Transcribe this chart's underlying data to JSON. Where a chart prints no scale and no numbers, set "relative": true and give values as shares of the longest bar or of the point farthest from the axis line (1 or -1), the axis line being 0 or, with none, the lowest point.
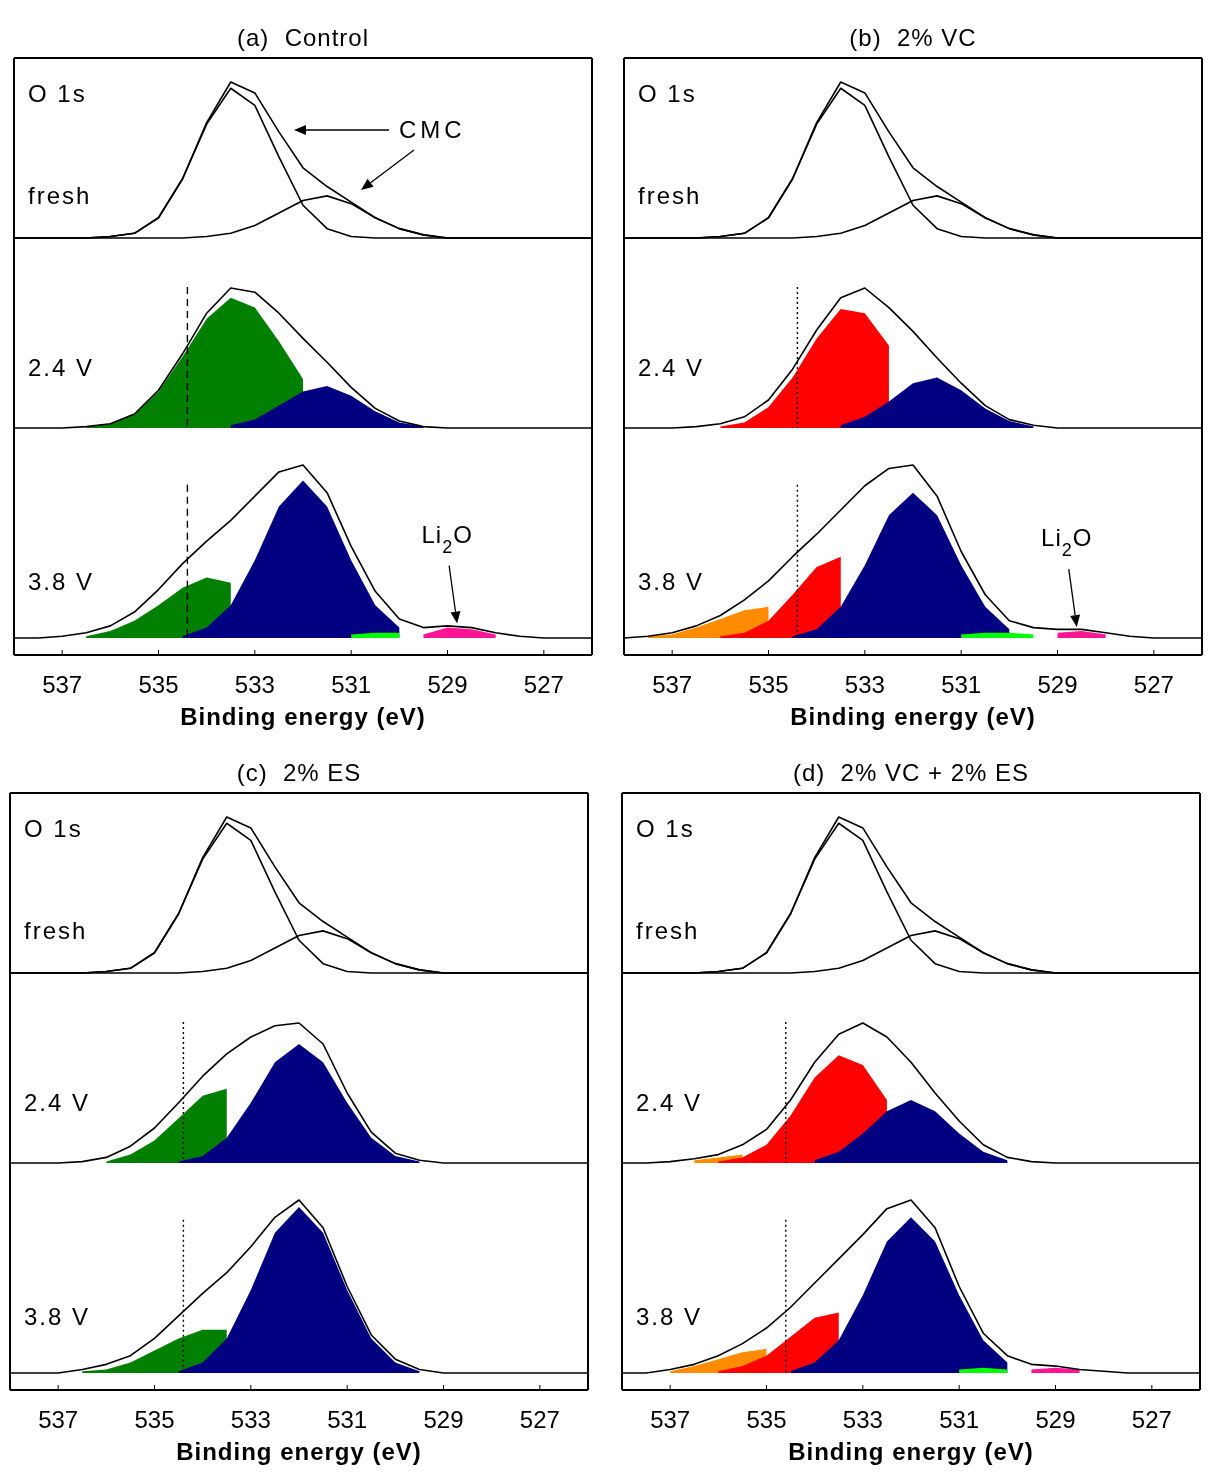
{
  "chart_data": [
    {
      "type": "line",
      "title": "(a)  Control",
      "x": [
        538,
        537.5,
        537,
        536.5,
        536,
        535.5,
        535,
        534.5,
        534,
        533.5,
        533,
        532.5,
        532,
        531.5,
        531,
        530.5,
        530,
        529.5,
        529,
        528.5,
        528,
        527.5,
        527,
        526.5,
        526
      ],
      "xlim": [
        538,
        526
      ],
      "relative": true,
      "tick_labels": false,
      "annotations": [
        "O 1s",
        "fresh",
        "CMC"
      ],
      "series": [
        {
          "color": "#000000",
          "values": [
            0,
            0,
            0,
            0,
            0.01,
            0.03,
            0.13,
            0.38,
            0.73,
            0.96,
            0.85,
            0.52,
            0.21,
            0.06,
            0.01,
            0,
            0,
            0,
            0,
            0,
            0,
            0,
            0,
            0,
            0
          ]
        },
        {
          "color": "#000000",
          "values": [
            0,
            0,
            0,
            0,
            0,
            0,
            0,
            0,
            0.01,
            0.03,
            0.08,
            0.16,
            0.24,
            0.27,
            0.22,
            0.13,
            0.06,
            0.02,
            0,
            0,
            0,
            0,
            0,
            0,
            0
          ]
        },
        {
          "color": "#000000",
          "values": [
            0,
            0,
            0,
            0,
            0.01,
            0.03,
            0.13,
            0.38,
            0.74,
            1.0,
            0.93,
            0.68,
            0.45,
            0.33,
            0.23,
            0.13,
            0.06,
            0.02,
            0,
            0,
            0,
            0,
            0,
            0,
            0
          ]
        }
      ]
    },
    {
      "type": "area",
      "x": [
        538,
        537.5,
        537,
        536.5,
        536,
        535.5,
        535,
        534.5,
        534,
        533.5,
        533,
        532.5,
        532,
        531.5,
        531,
        530.5,
        530,
        529.5,
        529,
        528.5,
        528,
        527.5,
        527,
        526.5,
        526
      ],
      "xlim": [
        538,
        526
      ],
      "relative": true,
      "tick_labels": false,
      "annotations": [
        "2.4 V"
      ],
      "ref_lines": [
        {
          "axis": "x",
          "value": 534.4,
          "line_style": "dashed"
        }
      ],
      "series": [
        {
          "color": "#007f00",
          "x": [
            536.5,
            536,
            535.5,
            535,
            534.5,
            534,
            533.5,
            533,
            532.5,
            532
          ],
          "values": [
            0.01,
            0.03,
            0.1,
            0.26,
            0.51,
            0.78,
            0.93,
            0.86,
            0.62,
            0.35
          ]
        },
        {
          "color": "#000080",
          "x": [
            533.5,
            533,
            532.5,
            532,
            531.5,
            531,
            530.5,
            530,
            529.5
          ],
          "values": [
            0.02,
            0.06,
            0.16,
            0.26,
            0.3,
            0.23,
            0.12,
            0.04,
            0.01
          ]
        },
        {
          "type": "line",
          "color": "#000000",
          "values": [
            0,
            0,
            0,
            0.01,
            0.03,
            0.1,
            0.27,
            0.53,
            0.82,
            1.0,
            0.97,
            0.82,
            0.64,
            0.47,
            0.29,
            0.14,
            0.05,
            0.01,
            0,
            0,
            0,
            0,
            0,
            0,
            0
          ]
        }
      ]
    },
    {
      "type": "area",
      "xlabel": "Binding energy (eV)",
      "x": [
        538,
        537.5,
        537,
        536.5,
        536,
        535.5,
        535,
        534.5,
        534,
        533.5,
        533,
        532.5,
        532,
        531.5,
        531,
        530.5,
        530,
        529.5,
        529,
        528.5,
        528,
        527.5,
        527,
        526.5,
        526
      ],
      "xlim": [
        538,
        526
      ],
      "xticks": [
        537,
        535,
        533,
        531,
        529,
        527
      ],
      "relative": true,
      "tick_labels": "x",
      "annotations": [
        "3.8 V",
        {
          "text": "Li$_{2}$O",
          "x": 528.8,
          "y": 0.06
        }
      ],
      "ref_lines": [
        {
          "axis": "x",
          "value": 534.4,
          "line_style": "dashed"
        }
      ],
      "series": [
        {
          "color": "#007f00",
          "x": [
            536.5,
            536,
            535.5,
            535,
            534.5,
            534,
            533.5
          ],
          "values": [
            0.01,
            0.04,
            0.1,
            0.19,
            0.29,
            0.35,
            0.32
          ]
        },
        {
          "color": "#000080",
          "x": [
            534.5,
            534,
            533.5,
            533,
            532.5,
            532,
            531.5,
            531,
            530.5,
            530
          ],
          "values": [
            0.01,
            0.06,
            0.19,
            0.45,
            0.76,
            0.91,
            0.76,
            0.45,
            0.19,
            0.06
          ]
        },
        {
          "color": "#00ff00",
          "x": [
            531,
            530.5,
            530
          ],
          "values": [
            0.02,
            0.03,
            0.03
          ]
        },
        {
          "color": "#ff1493",
          "x": [
            529.5,
            529,
            528.5,
            528
          ],
          "values": [
            0.02,
            0.06,
            0.05,
            0.02
          ]
        },
        {
          "type": "line",
          "color": "#000000",
          "values": [
            0,
            0,
            0.01,
            0.03,
            0.07,
            0.15,
            0.28,
            0.43,
            0.56,
            0.68,
            0.82,
            0.96,
            1.0,
            0.84,
            0.53,
            0.27,
            0.11,
            0.06,
            0.07,
            0.06,
            0.03,
            0.01,
            0,
            0,
            0
          ]
        }
      ]
    },
    {
      "type": "line",
      "title": "(b)  2% VC",
      "x": [
        538,
        537.5,
        537,
        536.5,
        536,
        535.5,
        535,
        534.5,
        534,
        533.5,
        533,
        532.5,
        532,
        531.5,
        531,
        530.5,
        530,
        529.5,
        529,
        528.5,
        528,
        527.5,
        527,
        526.5,
        526
      ],
      "xlim": [
        538,
        526
      ],
      "relative": true,
      "tick_labels": false,
      "annotations": [
        "O 1s",
        "fresh"
      ],
      "series": [
        {
          "color": "#000000",
          "values": [
            0,
            0,
            0,
            0,
            0.01,
            0.03,
            0.13,
            0.38,
            0.73,
            0.96,
            0.85,
            0.52,
            0.21,
            0.06,
            0.01,
            0,
            0,
            0,
            0,
            0,
            0,
            0,
            0,
            0,
            0
          ]
        },
        {
          "color": "#000000",
          "values": [
            0,
            0,
            0,
            0,
            0,
            0,
            0,
            0,
            0.01,
            0.03,
            0.08,
            0.16,
            0.24,
            0.27,
            0.22,
            0.13,
            0.06,
            0.02,
            0,
            0,
            0,
            0,
            0,
            0,
            0
          ]
        },
        {
          "color": "#000000",
          "values": [
            0,
            0,
            0,
            0,
            0.01,
            0.03,
            0.13,
            0.38,
            0.74,
            1.0,
            0.93,
            0.68,
            0.45,
            0.33,
            0.23,
            0.13,
            0.06,
            0.02,
            0,
            0,
            0,
            0,
            0,
            0,
            0
          ]
        }
      ]
    },
    {
      "type": "area",
      "x": [
        538,
        537.5,
        537,
        536.5,
        536,
        535.5,
        535,
        534.5,
        534,
        533.5,
        533,
        532.5,
        532,
        531.5,
        531,
        530.5,
        530,
        529.5,
        529,
        528.5,
        528,
        527.5,
        527,
        526.5,
        526
      ],
      "xlim": [
        538,
        526
      ],
      "relative": true,
      "tick_labels": false,
      "annotations": [
        "2.4 V"
      ],
      "ref_lines": [
        {
          "axis": "x",
          "value": 534.4,
          "line_style": "dotted"
        }
      ],
      "series": [
        {
          "color": "#ff0000",
          "x": [
            536,
            535.5,
            535,
            534.5,
            534,
            533.5,
            533,
            532.5
          ],
          "values": [
            0.01,
            0.04,
            0.15,
            0.36,
            0.64,
            0.85,
            0.82,
            0.59
          ]
        },
        {
          "color": "#000080",
          "x": [
            533.5,
            533,
            532.5,
            532,
            531.5,
            531,
            530.5,
            530,
            529.5
          ],
          "values": [
            0.02,
            0.08,
            0.19,
            0.32,
            0.36,
            0.27,
            0.14,
            0.05,
            0.01
          ]
        },
        {
          "type": "line",
          "color": "#000000",
          "values": [
            0,
            0,
            0,
            0.01,
            0.03,
            0.08,
            0.2,
            0.42,
            0.7,
            0.93,
            1.0,
            0.86,
            0.69,
            0.5,
            0.32,
            0.16,
            0.06,
            0.02,
            0,
            0,
            0,
            0,
            0,
            0,
            0
          ]
        }
      ]
    },
    {
      "type": "area",
      "xlabel": "Binding energy (eV)",
      "x": [
        538,
        537.5,
        537,
        536.5,
        536,
        535.5,
        535,
        534.5,
        534,
        533.5,
        533,
        532.5,
        532,
        531.5,
        531,
        530.5,
        530,
        529.5,
        529,
        528.5,
        528,
        527.5,
        527,
        526.5,
        526
      ],
      "xlim": [
        538,
        526
      ],
      "xticks": [
        537,
        535,
        533,
        531,
        529,
        527
      ],
      "relative": true,
      "tick_labels": "x",
      "annotations": [
        "3.8 V",
        {
          "text": "Li$_{2}$O",
          "x": 528.6,
          "y": 0.04
        }
      ],
      "ref_lines": [
        {
          "axis": "x",
          "value": 534.4,
          "line_style": "dotted"
        }
      ],
      "series": [
        {
          "color": "#ff8c00",
          "x": [
            537.5,
            537,
            536.5,
            536,
            535.5,
            535
          ],
          "values": [
            0.01,
            0.02,
            0.06,
            0.11,
            0.16,
            0.18
          ]
        },
        {
          "color": "#ff0000",
          "x": [
            536,
            535.5,
            535,
            534.5,
            534,
            533.5
          ],
          "values": [
            0.01,
            0.03,
            0.1,
            0.25,
            0.41,
            0.47
          ]
        },
        {
          "color": "#000080",
          "x": [
            534.5,
            534,
            533.5,
            533,
            532.5,
            532,
            531.5,
            531,
            530.5,
            530
          ],
          "values": [
            0.01,
            0.05,
            0.18,
            0.42,
            0.71,
            0.84,
            0.71,
            0.42,
            0.18,
            0.05
          ]
        },
        {
          "color": "#00ff00",
          "x": [
            531,
            530.5,
            530,
            529.5
          ],
          "values": [
            0.02,
            0.03,
            0.03,
            0.02
          ]
        },
        {
          "color": "#ff1493",
          "x": [
            529,
            528.5,
            528
          ],
          "values": [
            0.03,
            0.04,
            0.02
          ]
        },
        {
          "type": "line",
          "color": "#000000",
          "values": [
            0,
            0.01,
            0.03,
            0.07,
            0.13,
            0.22,
            0.33,
            0.47,
            0.6,
            0.74,
            0.88,
            0.98,
            1.0,
            0.82,
            0.5,
            0.25,
            0.1,
            0.06,
            0.05,
            0.05,
            0.03,
            0.01,
            0,
            0,
            0
          ]
        }
      ]
    },
    {
      "type": "line",
      "title": "(c)  2% ES",
      "x": [
        538,
        537.5,
        537,
        536.5,
        536,
        535.5,
        535,
        534.5,
        534,
        533.5,
        533,
        532.5,
        532,
        531.5,
        531,
        530.5,
        530,
        529.5,
        529,
        528.5,
        528,
        527.5,
        527,
        526.5,
        526
      ],
      "xlim": [
        538,
        526
      ],
      "relative": true,
      "tick_labels": false,
      "annotations": [
        "O 1s",
        "fresh"
      ],
      "series": [
        {
          "color": "#000000",
          "values": [
            0,
            0,
            0,
            0,
            0.01,
            0.03,
            0.13,
            0.38,
            0.73,
            0.96,
            0.85,
            0.52,
            0.21,
            0.06,
            0.01,
            0,
            0,
            0,
            0,
            0,
            0,
            0,
            0,
            0,
            0
          ]
        },
        {
          "color": "#000000",
          "values": [
            0,
            0,
            0,
            0,
            0,
            0,
            0,
            0,
            0.01,
            0.03,
            0.08,
            0.16,
            0.24,
            0.27,
            0.22,
            0.13,
            0.06,
            0.02,
            0,
            0,
            0,
            0,
            0,
            0,
            0
          ]
        },
        {
          "color": "#000000",
          "values": [
            0,
            0,
            0,
            0,
            0.01,
            0.03,
            0.13,
            0.38,
            0.74,
            1.0,
            0.93,
            0.68,
            0.45,
            0.33,
            0.23,
            0.13,
            0.06,
            0.02,
            0,
            0,
            0,
            0,
            0,
            0,
            0
          ]
        }
      ]
    },
    {
      "type": "area",
      "x": [
        538,
        537.5,
        537,
        536.5,
        536,
        535.5,
        535,
        534.5,
        534,
        533.5,
        533,
        532.5,
        532,
        531.5,
        531,
        530.5,
        530,
        529.5,
        529,
        528.5,
        528,
        527.5,
        527,
        526.5,
        526
      ],
      "xlim": [
        538,
        526
      ],
      "relative": true,
      "tick_labels": false,
      "annotations": [
        "2.4 V"
      ],
      "ref_lines": [
        {
          "axis": "x",
          "value": 534.4,
          "line_style": "dotted"
        }
      ],
      "series": [
        {
          "color": "#007f00",
          "x": [
            536,
            535.5,
            535,
            534.5,
            534,
            533.5
          ],
          "values": [
            0.01,
            0.06,
            0.16,
            0.32,
            0.48,
            0.53
          ]
        },
        {
          "color": "#000080",
          "x": [
            534.5,
            534,
            533.5,
            533,
            532.5,
            532,
            531.5,
            531,
            530.5,
            530,
            529.5
          ],
          "values": [
            0.01,
            0.05,
            0.18,
            0.43,
            0.72,
            0.85,
            0.72,
            0.43,
            0.18,
            0.05,
            0.01
          ]
        },
        {
          "type": "line",
          "color": "#000000",
          "values": [
            0,
            0,
            0,
            0.01,
            0.04,
            0.12,
            0.25,
            0.43,
            0.62,
            0.78,
            0.9,
            0.98,
            1.0,
            0.85,
            0.5,
            0.22,
            0.07,
            0.02,
            0,
            0,
            0,
            0,
            0,
            0,
            0
          ]
        }
      ]
    },
    {
      "type": "area",
      "xlabel": "Binding energy (eV)",
      "x": [
        538,
        537.5,
        537,
        536.5,
        536,
        535.5,
        535,
        534.5,
        534,
        533.5,
        533,
        532.5,
        532,
        531.5,
        531,
        530.5,
        530,
        529.5,
        529,
        528.5,
        528,
        527.5,
        527,
        526.5,
        526
      ],
      "xlim": [
        538,
        526
      ],
      "xticks": [
        537,
        535,
        533,
        531,
        529,
        527
      ],
      "relative": true,
      "tick_labels": "x",
      "annotations": [
        "3.8 V"
      ],
      "ref_lines": [
        {
          "axis": "x",
          "value": 534.4,
          "line_style": "dotted"
        }
      ],
      "series": [
        {
          "color": "#007f00",
          "x": [
            536.5,
            536,
            535.5,
            535,
            534.5,
            534,
            533.5
          ],
          "values": [
            0.01,
            0.02,
            0.06,
            0.13,
            0.2,
            0.25,
            0.25
          ]
        },
        {
          "color": "#000080",
          "x": [
            534.5,
            534,
            533.5,
            533,
            532.5,
            532,
            531.5,
            531,
            530.5,
            530,
            529.5
          ],
          "values": [
            0.01,
            0.06,
            0.2,
            0.48,
            0.81,
            0.96,
            0.81,
            0.48,
            0.2,
            0.06,
            0.01
          ]
        },
        {
          "type": "line",
          "color": "#000000",
          "values": [
            0,
            0,
            0,
            0.02,
            0.05,
            0.1,
            0.2,
            0.33,
            0.46,
            0.58,
            0.73,
            0.9,
            1.0,
            0.84,
            0.5,
            0.22,
            0.08,
            0.02,
            0,
            0,
            0,
            0,
            0,
            0,
            0
          ]
        }
      ]
    },
    {
      "type": "line",
      "title": "(d)  2% VC + 2% ES",
      "x": [
        538,
        537.5,
        537,
        536.5,
        536,
        535.5,
        535,
        534.5,
        534,
        533.5,
        533,
        532.5,
        532,
        531.5,
        531,
        530.5,
        530,
        529.5,
        529,
        528.5,
        528,
        527.5,
        527,
        526.5,
        526
      ],
      "xlim": [
        538,
        526
      ],
      "relative": true,
      "tick_labels": false,
      "annotations": [
        "O 1s",
        "fresh"
      ],
      "series": [
        {
          "color": "#000000",
          "values": [
            0,
            0,
            0,
            0,
            0.01,
            0.03,
            0.13,
            0.38,
            0.73,
            0.96,
            0.85,
            0.52,
            0.21,
            0.06,
            0.01,
            0,
            0,
            0,
            0,
            0,
            0,
            0,
            0,
            0,
            0
          ]
        },
        {
          "color": "#000000",
          "values": [
            0,
            0,
            0,
            0,
            0,
            0,
            0,
            0,
            0.01,
            0.03,
            0.08,
            0.16,
            0.24,
            0.27,
            0.22,
            0.13,
            0.06,
            0.02,
            0,
            0,
            0,
            0,
            0,
            0,
            0
          ]
        },
        {
          "color": "#000000",
          "values": [
            0,
            0,
            0,
            0,
            0.01,
            0.03,
            0.13,
            0.38,
            0.74,
            1.0,
            0.93,
            0.68,
            0.45,
            0.33,
            0.23,
            0.13,
            0.06,
            0.02,
            0,
            0,
            0,
            0,
            0,
            0,
            0
          ]
        }
      ]
    },
    {
      "type": "area",
      "x": [
        538,
        537.5,
        537,
        536.5,
        536,
        535.5,
        535,
        534.5,
        534,
        533.5,
        533,
        532.5,
        532,
        531.5,
        531,
        530.5,
        530,
        529.5,
        529,
        528.5,
        528,
        527.5,
        527,
        526.5,
        526
      ],
      "xlim": [
        538,
        526
      ],
      "relative": true,
      "tick_labels": false,
      "annotations": [
        "2.4 V"
      ],
      "ref_lines": [
        {
          "axis": "x",
          "value": 534.6,
          "line_style": "dotted"
        }
      ],
      "series": [
        {
          "color": "#ff8c00",
          "x": [
            536.5,
            536,
            535.5
          ],
          "values": [
            0.02,
            0.04,
            0.06
          ]
        },
        {
          "color": "#ff0000",
          "x": [
            536,
            535.5,
            535,
            534.5,
            534,
            533.5,
            533,
            532.5
          ],
          "values": [
            0.01,
            0.04,
            0.13,
            0.34,
            0.61,
            0.77,
            0.7,
            0.45
          ]
        },
        {
          "color": "#000080",
          "x": [
            534,
            533.5,
            533,
            532.5,
            532,
            531.5,
            531,
            530.5,
            530
          ],
          "values": [
            0.02,
            0.08,
            0.21,
            0.37,
            0.45,
            0.37,
            0.21,
            0.08,
            0.02
          ]
        },
        {
          "type": "line",
          "color": "#000000",
          "values": [
            0,
            0,
            0.01,
            0.03,
            0.06,
            0.13,
            0.24,
            0.45,
            0.72,
            0.92,
            1.0,
            0.9,
            0.72,
            0.5,
            0.3,
            0.13,
            0.04,
            0.01,
            0,
            0,
            0,
            0,
            0,
            0,
            0
          ]
        }
      ]
    },
    {
      "type": "area",
      "xlabel": "Binding energy (eV)",
      "x": [
        538,
        537.5,
        537,
        536.5,
        536,
        535.5,
        535,
        534.5,
        534,
        533.5,
        533,
        532.5,
        532,
        531.5,
        531,
        530.5,
        530,
        529.5,
        529,
        528.5,
        528,
        527.5,
        527,
        526.5,
        526
      ],
      "xlim": [
        538,
        526
      ],
      "xticks": [
        537,
        535,
        533,
        531,
        529,
        527
      ],
      "relative": true,
      "tick_labels": "x",
      "annotations": [
        "3.8 V"
      ],
      "ref_lines": [
        {
          "axis": "x",
          "value": 534.6,
          "line_style": "dotted"
        }
      ],
      "series": [
        {
          "color": "#ff8c00",
          "x": [
            537,
            536.5,
            536,
            535.5,
            535
          ],
          "values": [
            0.01,
            0.04,
            0.08,
            0.12,
            0.14
          ]
        },
        {
          "color": "#ff0000",
          "x": [
            536,
            535.5,
            535,
            534.5,
            534,
            533.5
          ],
          "values": [
            0.01,
            0.04,
            0.1,
            0.21,
            0.32,
            0.35
          ]
        },
        {
          "color": "#000080",
          "x": [
            534.5,
            534,
            533.5,
            533,
            532.5,
            532,
            531.5,
            531,
            530.5,
            530
          ],
          "values": [
            0.01,
            0.06,
            0.19,
            0.45,
            0.76,
            0.9,
            0.76,
            0.45,
            0.19,
            0.06
          ]
        },
        {
          "color": "#00ff00",
          "x": [
            531,
            530.5,
            530
          ],
          "values": [
            0.02,
            0.03,
            0.02
          ]
        },
        {
          "color": "#ff1493",
          "x": [
            529.5,
            529,
            528.5
          ],
          "values": [
            0.02,
            0.03,
            0.02
          ]
        },
        {
          "type": "line",
          "color": "#000000",
          "values": [
            0,
            0,
            0.02,
            0.05,
            0.1,
            0.17,
            0.26,
            0.38,
            0.52,
            0.66,
            0.8,
            0.95,
            1.0,
            0.84,
            0.5,
            0.23,
            0.1,
            0.05,
            0.04,
            0.02,
            0.01,
            0,
            0,
            0,
            0
          ]
        }
      ]
    }
  ]
}
